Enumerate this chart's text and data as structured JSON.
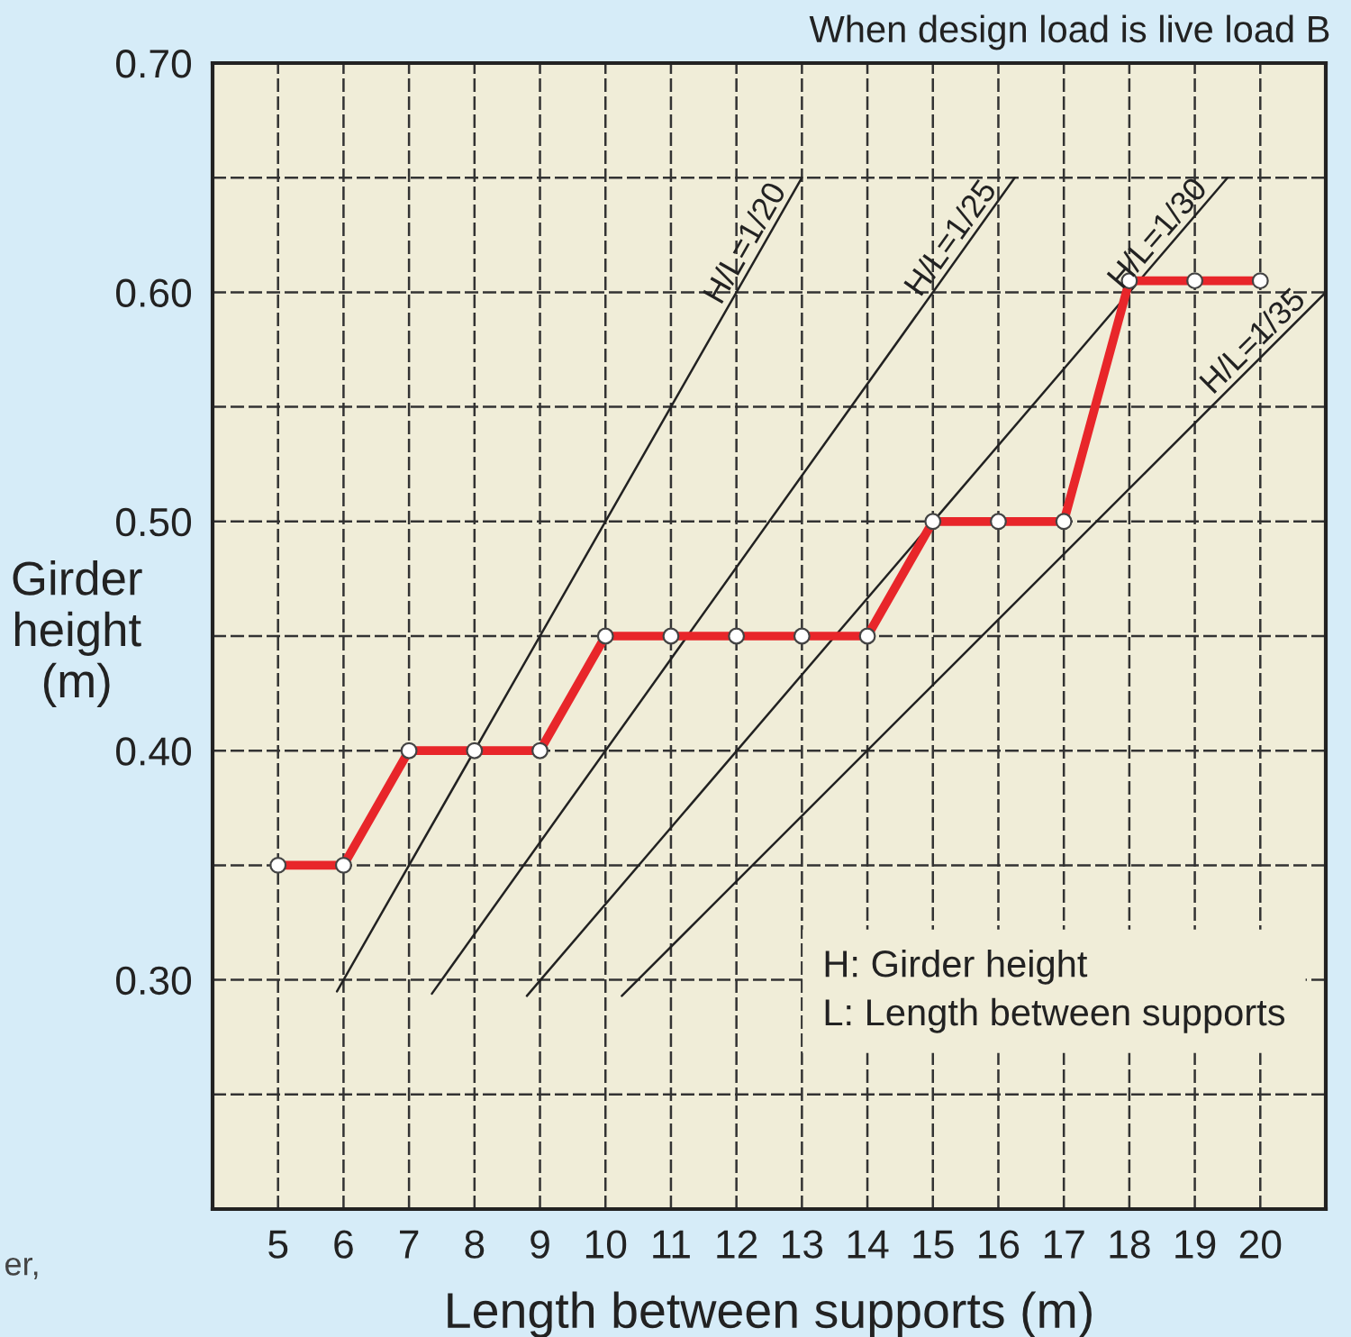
{
  "chart_data": {
    "type": "line",
    "title": "When design load is live load B",
    "xlabel": "Length between supports (m)",
    "ylabel": "Girder\nheight\n(m)",
    "x": [
      5,
      6,
      7,
      8,
      9,
      10,
      11,
      12,
      13,
      14,
      15,
      16,
      17,
      18,
      19,
      20
    ],
    "series": [
      {
        "color": "#e8262a",
        "marker": "circle",
        "values": [
          0.35,
          0.35,
          0.4,
          0.4,
          0.4,
          0.45,
          0.45,
          0.45,
          0.45,
          0.45,
          0.5,
          0.5,
          0.5,
          0.605,
          0.605,
          0.605
        ]
      },
      {
        "name": "H/L=1/20",
        "color": "#222222",
        "marker": "none",
        "x": [
          5.9,
          13
        ],
        "values": [
          0.295,
          0.65
        ]
      },
      {
        "name": "H/L=1/25",
        "color": "#222222",
        "marker": "none",
        "x": [
          7.35,
          16.25
        ],
        "values": [
          0.294,
          0.65
        ]
      },
      {
        "name": "H/L=1/30",
        "color": "#222222",
        "marker": "none",
        "x": [
          8.8,
          19.5
        ],
        "values": [
          0.293,
          0.65
        ]
      },
      {
        "name": "H/L=1/35",
        "color": "#222222",
        "marker": "none",
        "x": [
          10.25,
          21
        ],
        "values": [
          0.293,
          0.6
        ]
      }
    ],
    "xlim": [
      4,
      21
    ],
    "xticks": [
      5,
      6,
      7,
      8,
      9,
      10,
      11,
      12,
      13,
      14,
      15,
      16,
      17,
      18,
      19,
      20
    ],
    "ylim": [
      0.2,
      0.7
    ],
    "yticks": [
      {
        "value": 0.25,
        "label": null
      },
      {
        "value": 0.3,
        "label": "0.30"
      },
      {
        "value": 0.35,
        "label": null
      },
      {
        "value": 0.4,
        "label": "0.40"
      },
      {
        "value": 0.45,
        "label": null
      },
      {
        "value": 0.5,
        "label": "0.50"
      },
      {
        "value": 0.55,
        "label": null
      },
      {
        "value": 0.6,
        "label": "0.60"
      },
      {
        "value": 0.65,
        "label": null
      },
      {
        "value": 0.7,
        "label": "0.70"
      }
    ],
    "grid": true,
    "legend": false,
    "line_style": "solid",
    "annotations": [
      "H: Girder height",
      "L: Length between supports",
      "er,"
    ]
  }
}
